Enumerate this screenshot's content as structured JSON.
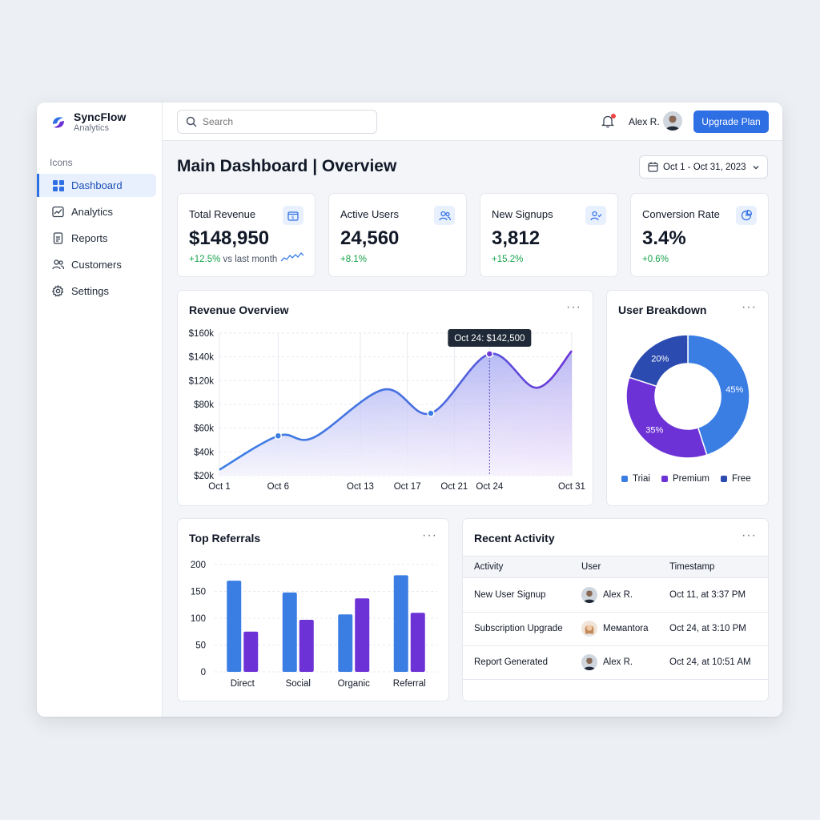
{
  "brand": {
    "name": "SyncFlow",
    "sub": "Analytics"
  },
  "sidebar": {
    "section": "Icons",
    "items": [
      {
        "label": "Dashboard",
        "icon": "grid-icon",
        "active": true
      },
      {
        "label": "Analytics",
        "icon": "line-chart-icon"
      },
      {
        "label": "Reports",
        "icon": "document-icon"
      },
      {
        "label": "Customers",
        "icon": "users-icon"
      },
      {
        "label": "Settings",
        "icon": "gear-icon"
      }
    ]
  },
  "topbar": {
    "search_placeholder": "Search",
    "user_name": "Alex R.",
    "upgrade_label": "Upgrade Plan"
  },
  "header": {
    "title": "Main Dashboard | Overview",
    "date_range": "Oct 1 - Oct 31, 2023"
  },
  "kpis": [
    {
      "label": "Total Revenue",
      "value": "$148,950",
      "delta": "+12.5%",
      "delta_note": "vs last month",
      "icon": "wallet-icon"
    },
    {
      "label": "Active Users",
      "value": "24,560",
      "delta": "+8.1%",
      "icon": "users-icon"
    },
    {
      "label": "New Signups",
      "value": "3,812",
      "delta": "+15.2%",
      "icon": "user-check-icon"
    },
    {
      "label": "Conversion Rate",
      "value": "3.4%",
      "delta": "+0.6%",
      "icon": "pie-icon"
    }
  ],
  "revenue": {
    "title": "Revenue Overview",
    "tooltip": "Oct 24: $142,500"
  },
  "breakdown": {
    "title": "User Breakdown"
  },
  "referrals": {
    "title": "Top Referrals"
  },
  "activity": {
    "title": "Recent Activity",
    "columns": [
      "Activity",
      "User",
      "Timestamp"
    ],
    "rows": [
      {
        "activity": "New User Signup",
        "user": "Alex R.",
        "time": "Oct 11, at 3:37 PM"
      },
      {
        "activity": "Subscription Upgrade",
        "user": "Mемantora",
        "time": "Oct 24, at 3:10 PM"
      },
      {
        "activity": "Report Generated",
        "user": "Alex R.",
        "time": "Oct 24, at 10:51 AM"
      }
    ]
  },
  "colors": {
    "accent": "#2f6fe4",
    "purple": "#6d32d6",
    "navy": "#2b4bb0",
    "green": "#16a34a"
  },
  "chart_data": [
    {
      "type": "area",
      "title": "Revenue Overview",
      "x": [
        "Oct 1",
        "Oct 6",
        "Oct 13",
        "Oct 17",
        "Oct 21",
        "Oct 24",
        "Oct 31"
      ],
      "y_ticks": [
        "$20k",
        "$40k",
        "$60k",
        "$80k",
        "$120k",
        "$140k",
        "$160k"
      ],
      "points": [
        {
          "x": "Oct 1",
          "y": 25000
        },
        {
          "x": "Oct 6",
          "y": 53500
        },
        {
          "x": "Oct 9",
          "y": 52000
        },
        {
          "x": "Oct 15",
          "y": 105000
        },
        {
          "x": "Oct 19",
          "y": 72500
        },
        {
          "x": "Oct 24",
          "y": 142500
        },
        {
          "x": "Oct 28",
          "y": 108000
        },
        {
          "x": "Oct 31",
          "y": 145000
        }
      ],
      "markers": [
        "Oct 6",
        "Oct 19",
        "Oct 24"
      ],
      "highlight": "Oct 24",
      "grid": true
    },
    {
      "type": "pie",
      "title": "User Breakdown",
      "donut": true,
      "slices": [
        {
          "name": "Trial",
          "value": 45,
          "label": "45%",
          "color": "#3a7ee4"
        },
        {
          "name": "Premium",
          "value": 35,
          "label": "35%",
          "color": "#6d32d6"
        },
        {
          "name": "Free",
          "value": 20,
          "label": "20%",
          "color": "#2b4bb0"
        }
      ],
      "legend": [
        "Triai",
        "Premium",
        "Free"
      ],
      "legend_position": "bottom"
    },
    {
      "type": "bar",
      "title": "Top Referrals",
      "categories": [
        "Direct",
        "Social",
        "Organic",
        "Referral"
      ],
      "series": [
        {
          "values": [
            170,
            148,
            107,
            180
          ],
          "color": "#3a7ee4"
        },
        {
          "values": [
            75,
            97,
            137,
            110
          ],
          "color": "#6d32d6"
        }
      ],
      "ylim": [
        0,
        200
      ],
      "y_ticks": [
        "0",
        "50",
        "100",
        "150",
        "200"
      ],
      "grid": true
    }
  ]
}
